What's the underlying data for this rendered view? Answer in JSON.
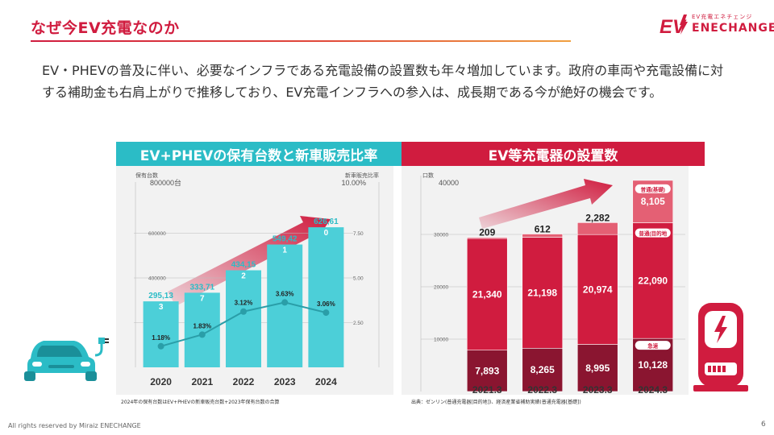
{
  "header": {
    "title": "なぜ今EV充電なのか",
    "logo_tagline": "EV充電エネチェンジ",
    "logo_name": "ENECHANGE",
    "logo_mark": "EV"
  },
  "lead_text": "EV・PHEVの普及に伴い、必要なインフラである充電設備の設置数も年々増加しています。政府の車両や充電設備に対する補助金も右肩上がりで推移しており、EV充電インフラへの参入は、成長期である今が絶好の機会です。",
  "colors": {
    "accent": "#d01c3f",
    "teal": "#2bbcc6",
    "bar_teal": "#4ccfd8",
    "line_teal": "#2a9ea8"
  },
  "icons": {
    "car": "ev-car-icon",
    "charger": "ev-charger-icon",
    "arrow": "growth-arrow-icon"
  },
  "chart_data": [
    {
      "type": "bar",
      "title": "EV+PHEVの保有台数と新車販売比率",
      "ylabel": "保有台数",
      "y2label": "新車販売比率",
      "ylim": [
        0,
        800000
      ],
      "y2lim": [
        0,
        10
      ],
      "yticks": [
        200000,
        400000,
        600000
      ],
      "ytick_labels": [
        "200000",
        "400000",
        "600000"
      ],
      "ytop_label": "800000台",
      "y2ticks": [
        2.5,
        5,
        7.5
      ],
      "y2tick_labels": [
        "2.50",
        "5.00",
        "7.50"
      ],
      "y2top_label": "10.00%",
      "categories": [
        "2020",
        "2021",
        "2022",
        "2023",
        "2024"
      ],
      "series": [
        {
          "values": [
            295133,
            333717,
            434152,
            549421,
            626610
          ],
          "labels": [
            [
              "295,13",
              "3"
            ],
            [
              "333,71",
              "7"
            ],
            [
              "434,15",
              "2"
            ],
            [
              "549,42",
              "1"
            ],
            [
              "626,61",
              "0"
            ]
          ]
        },
        {
          "values": [
            1.18,
            1.83,
            3.12,
            3.63,
            3.06
          ],
          "labels": [
            "1.18%",
            "1.83%",
            "3.12%",
            "3.63%",
            "3.06%"
          ]
        }
      ],
      "footnote": "2024年の保有台数はEV+PHEVの新車販売台数+2023年保有台数の合算"
    },
    {
      "type": "bar",
      "title": "EV等充電器の設置数",
      "ylabel": "口数",
      "ylim": [
        0,
        40000
      ],
      "yticks": [
        10000,
        20000,
        30000
      ],
      "ytick_labels": [
        "10000",
        "20000",
        "30000"
      ],
      "ytop_label": "40000",
      "categories": [
        "2021.3",
        "2022.3",
        "2023.3",
        "2024.3"
      ],
      "series": [
        {
          "name": "急速",
          "values": [
            7893,
            8265,
            8995,
            10128
          ],
          "labels": [
            "7,893",
            "8,265",
            "8,995",
            "10,128"
          ]
        },
        {
          "name": "普通(目的地)",
          "values": [
            21340,
            21198,
            20974,
            22090
          ],
          "labels": [
            "21,340",
            "21,198",
            "20,974",
            "22,090"
          ]
        },
        {
          "name": "普通(基礎)",
          "values": [
            209,
            612,
            2282,
            8105
          ],
          "labels": [
            "209",
            "612",
            "2,282",
            "8,105"
          ]
        }
      ],
      "badges": {
        "rapid": "急速",
        "dest": "普通(目的地",
        "base": "普通(基礎)"
      },
      "footnote": "出典：ゼンリン(普通充電器[目的地])、経済産業省補助実績(普通充電器[基礎])"
    }
  ],
  "footer": {
    "copyright": "All rights reserved by Miraiz ENECHANGE",
    "page": "6"
  }
}
